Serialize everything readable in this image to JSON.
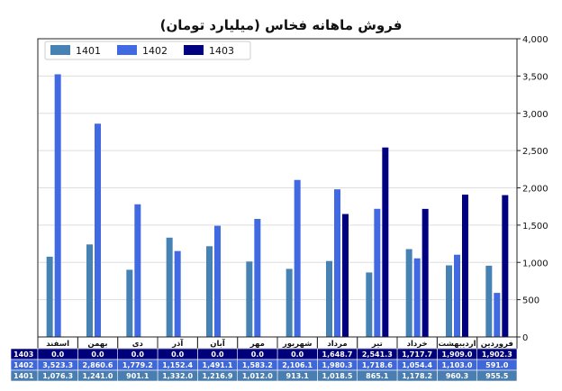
{
  "chart_data": {
    "type": "bar",
    "title": "فروش ماهانه فخاس (میلیارد تومان)",
    "categories": [
      "فروردین",
      "اردیبهشت",
      "خرداد",
      "تیر",
      "مرداد",
      "شهریور",
      "مهر",
      "آبان",
      "آذر",
      "دی",
      "بهمن",
      "اسفند"
    ],
    "series": [
      {
        "name": "1401",
        "color": "#4682B4",
        "values": [
          955.5,
          960.3,
          1178.2,
          865.1,
          1018.5,
          913.1,
          1012.0,
          1216.9,
          1332.0,
          901.1,
          1241.0,
          1076.3
        ],
        "labels": [
          "955.5",
          "960.3",
          "1,178.2",
          "865.1",
          "1,018.5",
          "913.1",
          "1,012.0",
          "1,216.9",
          "1,332.0",
          "901.1",
          "1,241.0",
          "1,076.3"
        ]
      },
      {
        "name": "1402",
        "color": "#4169E1",
        "values": [
          591.0,
          1103.0,
          1054.4,
          1718.6,
          1980.3,
          2106.1,
          1583.2,
          1491.1,
          1152.4,
          1779.2,
          2860.6,
          3523.3
        ],
        "labels": [
          "591.0",
          "1,103.0",
          "1,054.4",
          "1,718.6",
          "1,980.3",
          "2,106.1",
          "1,583.2",
          "1,491.1",
          "1,152.4",
          "1,779.2",
          "2,860.6",
          "3,523.3"
        ]
      },
      {
        "name": "1403",
        "color": "#000080",
        "values": [
          1902.3,
          1909.0,
          1717.7,
          2541.3,
          1648.7,
          0,
          0,
          0,
          0,
          0,
          0,
          0
        ],
        "labels": [
          "1,902.3",
          "1,909.0",
          "1,717.7",
          "2,541.3",
          "1,648.7",
          "0.0",
          "0.0",
          "0.0",
          "0.0",
          "0.0",
          "0.0",
          "0.0"
        ]
      }
    ],
    "table_row_order": [
      "1403",
      "1402",
      "1401"
    ],
    "ylim": [
      0,
      4000
    ],
    "yticks": [
      0,
      500,
      1000,
      1500,
      2000,
      2500,
      3000,
      3500,
      4000
    ],
    "ytick_labels": [
      "0",
      "500",
      "1,000",
      "1,500",
      "2,000",
      "2,500",
      "3,000",
      "3,500",
      "4,000"
    ],
    "y_axis_side": "right",
    "x_order": "right-to-left",
    "grid": "horizontal",
    "legend": "top-left"
  }
}
